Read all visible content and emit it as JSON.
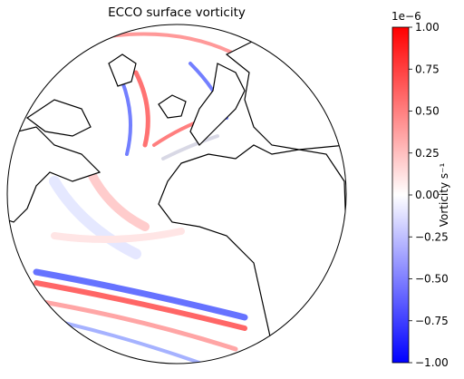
{
  "chart_data": {
    "type": "map",
    "title": "ECCO surface vorticity",
    "colorbar": {
      "label": "Vorticity s⁻¹",
      "offset": "1e−6",
      "lim": [
        -1,
        1
      ],
      "colors": [
        "#0000ff",
        "#ffffff",
        "#ff0000"
      ],
      "ticks": [
        {
          "value": -1,
          "label": "−1.00"
        },
        {
          "value": -0.75,
          "label": "−0.75"
        },
        {
          "value": -0.5,
          "label": "−0.50"
        },
        {
          "value": -0.25,
          "label": "−0.25"
        },
        {
          "value": 0,
          "label": "0.00"
        },
        {
          "value": 0.25,
          "label": "0.25"
        },
        {
          "value": 0.5,
          "label": "0.50"
        },
        {
          "value": 0.75,
          "label": "0.75"
        },
        {
          "value": 1,
          "label": "1.00"
        }
      ]
    }
  }
}
